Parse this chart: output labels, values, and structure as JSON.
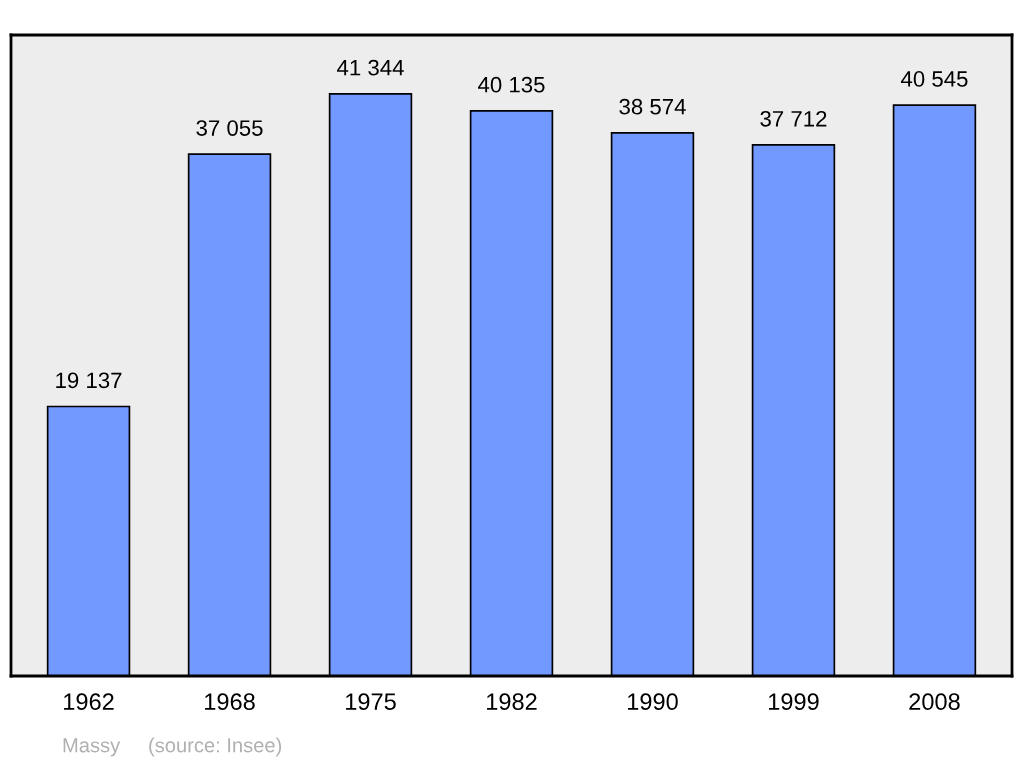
{
  "chart_data": {
    "type": "bar",
    "categories": [
      "1962",
      "1968",
      "1975",
      "1982",
      "1990",
      "1999",
      "2008"
    ],
    "values": [
      19137,
      37055,
      41344,
      40135,
      38574,
      37712,
      40545
    ],
    "value_labels": [
      "19 137",
      "37 055",
      "41 344",
      "40 135",
      "38 574",
      "37 712",
      "40 545"
    ],
    "color": "#7299ff",
    "tick_labels": "x",
    "grid": false,
    "legend": false,
    "annotations": [
      "Massy",
      "(source: Insee)"
    ]
  }
}
